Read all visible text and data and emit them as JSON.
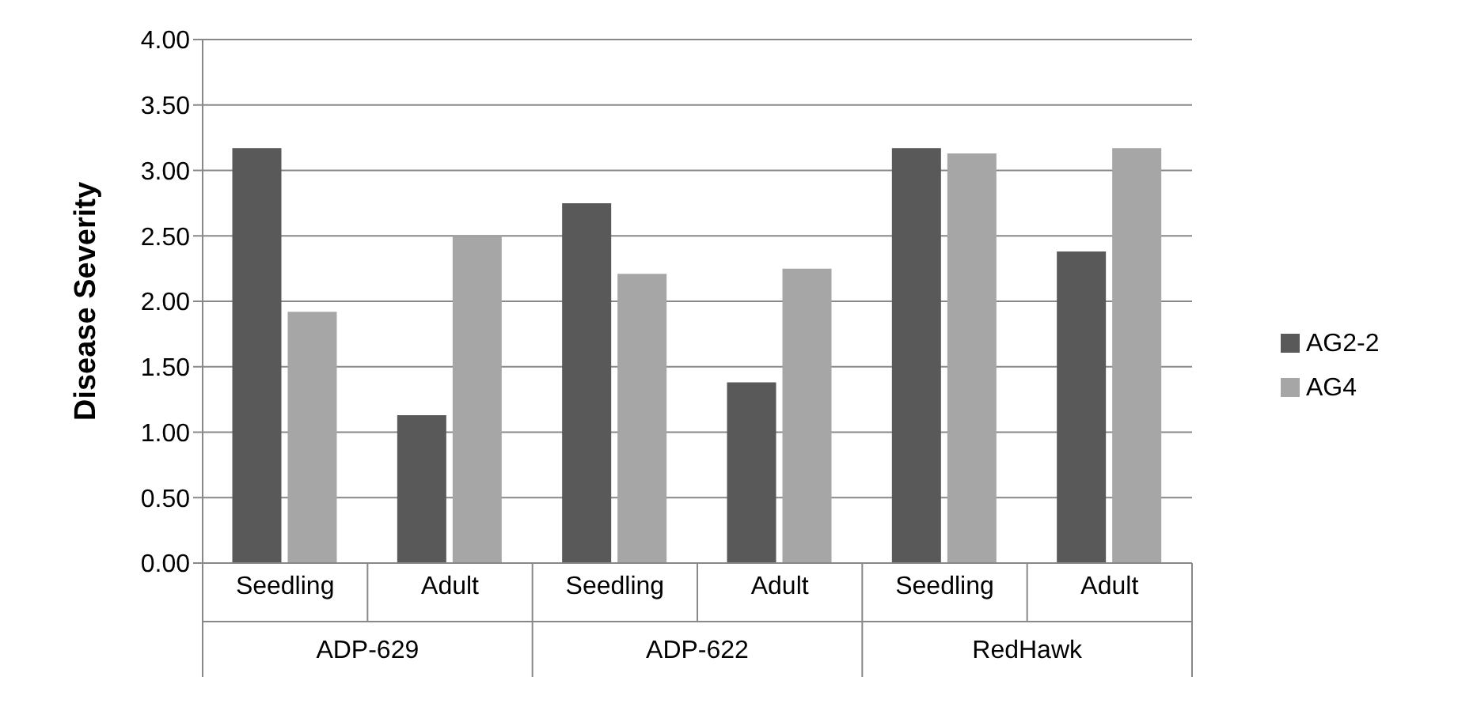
{
  "chart_data": {
    "type": "bar",
    "ylabel": "Disease Severity",
    "categories": [
      "Seedling",
      "Adult",
      "Seedling",
      "Adult",
      "Seedling",
      "Adult"
    ],
    "annotations": [
      "ADP-629",
      "ADP-622",
      "RedHawk"
    ],
    "series": [
      {
        "name": "AG2-2",
        "color": "#595959",
        "values": [
          3.17,
          1.13,
          2.75,
          1.38,
          3.17,
          2.38
        ]
      },
      {
        "name": "AG4",
        "color": "#a6a6a6",
        "values": [
          1.92,
          2.5,
          2.21,
          2.25,
          3.13,
          3.17
        ]
      }
    ],
    "ylim": [
      0,
      4
    ],
    "yticks": [
      {
        "value": 0,
        "label": "0.00"
      },
      {
        "value": 0.5,
        "label": "0.50"
      },
      {
        "value": 1,
        "label": "1.00"
      },
      {
        "value": 1.5,
        "label": "1.50"
      },
      {
        "value": 2,
        "label": "2.00"
      },
      {
        "value": 2.5,
        "label": "2.50"
      },
      {
        "value": 3,
        "label": "3.00"
      },
      {
        "value": 3.5,
        "label": "3.50"
      },
      {
        "value": 4,
        "label": "4.00"
      }
    ],
    "grid": "y",
    "legend": "right"
  }
}
